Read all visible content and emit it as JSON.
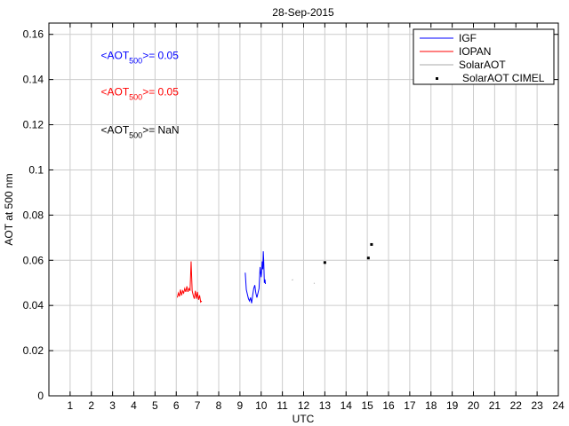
{
  "chart_data": {
    "type": "line",
    "title": "28-Sep-2015",
    "xlabel": "UTC",
    "ylabel": "AOT at 500 nm",
    "xlim": [
      0,
      24
    ],
    "ylim": [
      0,
      0.165
    ],
    "xticks": [
      1,
      2,
      3,
      4,
      5,
      6,
      7,
      8,
      9,
      10,
      11,
      12,
      13,
      14,
      15,
      16,
      17,
      18,
      19,
      20,
      21,
      22,
      23,
      24
    ],
    "yticks": [
      0,
      0.02,
      0.04,
      0.06,
      0.08,
      0.1,
      0.12,
      0.14,
      0.16
    ],
    "ytick_labels": [
      "0",
      "0.02",
      "0.04",
      "0.06",
      "0.08",
      "0.1",
      "0.12",
      "0.14",
      "0.16"
    ],
    "grid": true,
    "legend_position": "top-right",
    "series": [
      {
        "name": "IGF",
        "color": "#0000ff",
        "style": "line",
        "x": [
          9.25,
          9.3,
          9.35,
          9.4,
          9.45,
          9.5,
          9.55,
          9.6,
          9.65,
          9.7,
          9.75,
          9.8,
          9.85,
          9.9,
          9.95,
          10.0,
          10.02,
          10.05,
          10.08,
          10.1,
          10.12,
          10.15,
          10.18,
          10.2
        ],
        "y": [
          0.0545,
          0.047,
          0.045,
          0.043,
          0.042,
          0.0435,
          0.041,
          0.0445,
          0.0475,
          0.049,
          0.0455,
          0.0435,
          0.0455,
          0.0475,
          0.057,
          0.0525,
          0.0545,
          0.0595,
          0.056,
          0.064,
          0.06,
          0.05,
          0.0515,
          0.0495
        ]
      },
      {
        "name": "IOPAN",
        "color": "#ff0000",
        "style": "line",
        "x": [
          6.05,
          6.1,
          6.15,
          6.2,
          6.25,
          6.3,
          6.35,
          6.4,
          6.45,
          6.5,
          6.55,
          6.6,
          6.65,
          6.7,
          6.75,
          6.8,
          6.85,
          6.9,
          6.95,
          7.0,
          7.05,
          7.1,
          7.15,
          7.2
        ],
        "y": [
          0.0435,
          0.0455,
          0.044,
          0.047,
          0.0445,
          0.0465,
          0.0455,
          0.0475,
          0.046,
          0.0485,
          0.046,
          0.0475,
          0.0465,
          0.0595,
          0.0465,
          0.0445,
          0.043,
          0.0465,
          0.043,
          0.046,
          0.0425,
          0.0445,
          0.0415,
          0.042
        ]
      },
      {
        "name": "SolarAOT",
        "color": "#aaaaaa",
        "style": "line",
        "x": [
          11.45,
          11.5,
          12.48,
          12.52
        ],
        "y": [
          0.0512,
          0.0515,
          0.0497,
          0.0499
        ]
      },
      {
        "name": "SolarAOT CIMEL",
        "color": "#000000",
        "style": "points",
        "x": [
          13.0,
          15.05,
          15.2
        ],
        "y": [
          0.059,
          0.061,
          0.067
        ]
      }
    ],
    "annotations": [
      {
        "text_prefix": "<AOT",
        "subscript": "500",
        "text_suffix": ">= 0.05",
        "color": "#0000ff",
        "x": 2.45,
        "y": 0.149
      },
      {
        "text_prefix": "<AOT",
        "subscript": "500",
        "text_suffix": ">= 0.05",
        "color": "#ff0000",
        "x": 2.45,
        "y": 0.133
      },
      {
        "text_prefix": "<AOT",
        "subscript": "500",
        "text_suffix": ">=  NaN",
        "color": "#000000",
        "x": 2.45,
        "y": 0.116
      }
    ]
  }
}
